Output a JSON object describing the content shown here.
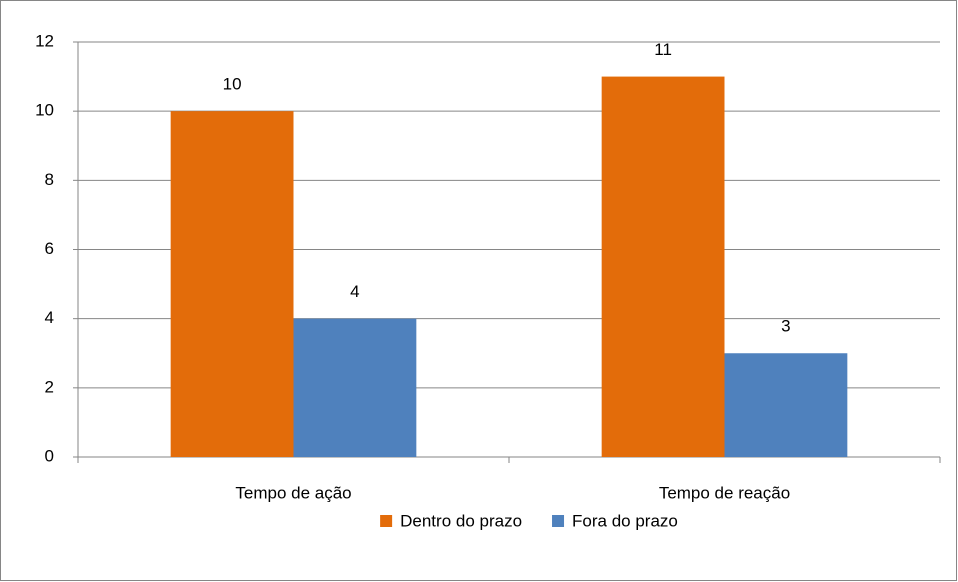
{
  "chart_data": {
    "type": "bar",
    "categories": [
      "Tempo de ação",
      "Tempo de reação"
    ],
    "series": [
      {
        "name": "Dentro do prazo",
        "color": "#e36c0a",
        "values": [
          10,
          11
        ]
      },
      {
        "name": "Fora do prazo",
        "color": "#4f81bd",
        "values": [
          4,
          3
        ]
      }
    ],
    "ylim": [
      0,
      12
    ],
    "yticks": [
      0,
      2,
      4,
      6,
      8,
      10,
      12
    ],
    "grid": true,
    "legend": "bottom",
    "data_labels": true
  }
}
